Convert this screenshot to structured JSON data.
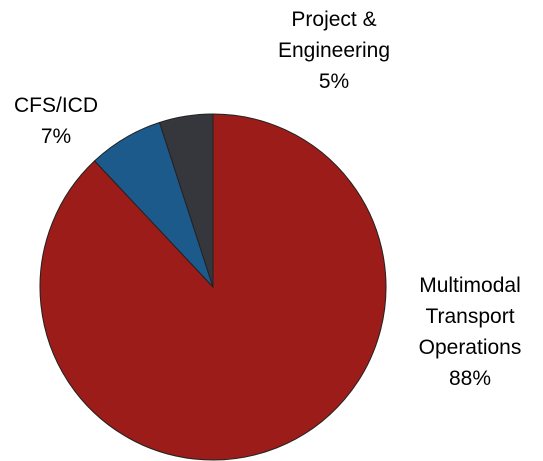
{
  "chart_data": {
    "type": "pie",
    "categories": [
      "Multimodal Transport Operations",
      "CFS/ICD",
      "Project & Engineering"
    ],
    "values": [
      88,
      7,
      5
    ],
    "value_labels": [
      "88%",
      "7%",
      "5%"
    ],
    "colors": [
      "#9b1c18",
      "#1d5a8c",
      "#36373d"
    ]
  }
}
